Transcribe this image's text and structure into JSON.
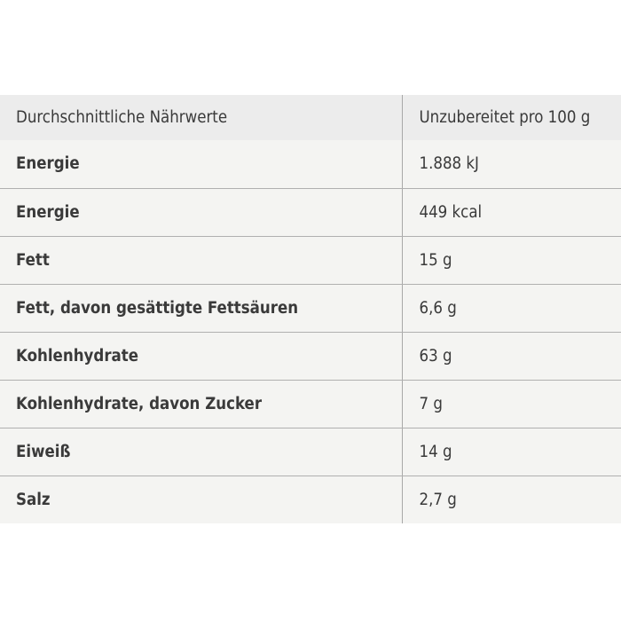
{
  "table": {
    "header": [
      "Durchschnittliche Nährwerte",
      "Unzubereitet pro 100 g"
    ],
    "rows": [
      [
        "Energie",
        "1.888 kJ"
      ],
      [
        "Energie",
        "449 kcal"
      ],
      [
        "Fett",
        "15 g"
      ],
      [
        "Fett, davon gesättigte Fettsäuren",
        "6,6 g"
      ],
      [
        "Kohlenhydrate",
        "63 g"
      ],
      [
        "Kohlenhydrate, davon Zucker",
        "7 g"
      ],
      [
        "Eiweiß",
        "14 g"
      ],
      [
        "Salz",
        "2,7 g"
      ]
    ]
  },
  "colors": {
    "header_bg": "#ececec",
    "row_bg": "#f4f4f2",
    "text": "#3a3a3a",
    "lines": "#a8a8a8"
  }
}
